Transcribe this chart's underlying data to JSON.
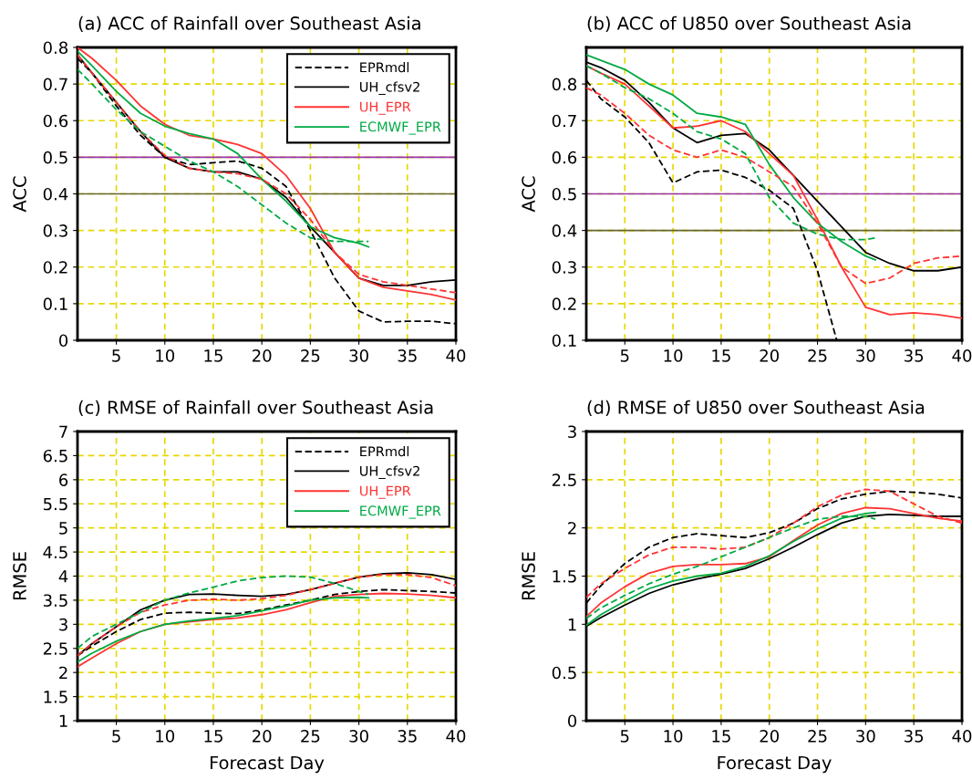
{
  "chart_data": [
    {
      "type": "line",
      "title": "(a) ACC of Rainfall over Southeast Asia",
      "ylabel": "ACC",
      "x": [
        1,
        2.5,
        5,
        7.5,
        10,
        12.5,
        15,
        17.5,
        20,
        22.5,
        25,
        27.5,
        30,
        32.5,
        35,
        37.5,
        40
      ],
      "xlim": [
        1,
        40
      ],
      "xticks": [
        5,
        10,
        15,
        20,
        25,
        30,
        35,
        40
      ],
      "ylim": [
        0,
        0.8
      ],
      "yticks": [
        0,
        0.1,
        0.2,
        0.3,
        0.4,
        0.5,
        0.6,
        0.7,
        0.8
      ],
      "grid": true,
      "legend": "top right",
      "ref_lines": [
        {
          "axis": "y",
          "value": 0.5,
          "color": "#9933aa"
        },
        {
          "axis": "y",
          "value": 0.4,
          "color": "#666633"
        }
      ],
      "series": [
        {
          "name": "EPRmdl",
          "color": "#000000",
          "line_style": "dashed",
          "values": [
            0.77,
            0.73,
            0.64,
            0.56,
            0.5,
            0.48,
            0.485,
            0.49,
            0.47,
            0.42,
            0.3,
            0.17,
            0.08,
            0.05,
            0.052,
            0.052,
            0.045
          ]
        },
        {
          "name": "UH_cfsv2",
          "color": "#000000",
          "line_style": "solid",
          "values": [
            0.78,
            0.73,
            0.65,
            0.57,
            0.5,
            0.47,
            0.46,
            0.46,
            0.44,
            0.39,
            0.31,
            0.24,
            0.17,
            0.15,
            0.15,
            0.16,
            0.165
          ]
        },
        {
          "name": "UH_EPR",
          "color": "#ff3333",
          "line_style": "solid",
          "values": [
            0.8,
            0.77,
            0.71,
            0.64,
            0.59,
            0.56,
            0.55,
            0.535,
            0.51,
            0.45,
            0.36,
            0.24,
            0.17,
            0.145,
            0.135,
            0.125,
            0.11
          ]
        },
        {
          "name": "ECMWF_EPR",
          "color": "#00aa44",
          "line_style": "solid",
          "x": [
            1,
            2.5,
            5,
            7.5,
            10,
            12.5,
            15,
            17.5,
            20,
            22.5,
            25,
            27.5,
            30,
            31
          ],
          "values": [
            0.79,
            0.75,
            0.68,
            0.62,
            0.585,
            0.565,
            0.55,
            0.51,
            0.44,
            0.38,
            0.31,
            0.28,
            0.265,
            0.255
          ]
        },
        {
          "color": "#ff3333",
          "line_style": "dashed",
          "values": [
            0.78,
            0.73,
            0.65,
            0.57,
            0.505,
            0.47,
            0.46,
            0.455,
            0.44,
            0.4,
            0.33,
            0.24,
            0.18,
            0.16,
            0.15,
            0.14,
            0.13
          ]
        },
        {
          "color": "#00aa44",
          "line_style": "dashed",
          "x": [
            1,
            2.5,
            5,
            7.5,
            10,
            12.5,
            15,
            17.5,
            20,
            22.5,
            25,
            27.5,
            30,
            31
          ],
          "values": [
            0.74,
            0.7,
            0.63,
            0.57,
            0.53,
            0.49,
            0.46,
            0.42,
            0.37,
            0.32,
            0.28,
            0.27,
            0.27,
            0.27
          ]
        }
      ]
    },
    {
      "type": "line",
      "title": "(b) ACC of U850 over Southeast Asia",
      "ylabel": "ACC",
      "x": [
        1,
        2.5,
        5,
        7.5,
        10,
        12.5,
        15,
        17.5,
        20,
        22.5,
        25,
        27.5,
        30,
        32.5,
        35,
        37.5,
        40
      ],
      "xlim": [
        1,
        40
      ],
      "xticks": [
        5,
        10,
        15,
        20,
        25,
        30,
        35,
        40
      ],
      "ylim": [
        0.1,
        0.9
      ],
      "yticks": [
        0.1,
        0.2,
        0.3,
        0.4,
        0.5,
        0.6,
        0.7,
        0.8
      ],
      "grid": true,
      "ref_lines": [
        {
          "axis": "y",
          "value": 0.5,
          "color": "#9933aa"
        },
        {
          "axis": "y",
          "value": 0.4,
          "color": "#666633"
        }
      ],
      "series": [
        {
          "color": "#000000",
          "line_style": "dashed",
          "x": [
            1,
            2.5,
            5,
            7.5,
            10,
            12.5,
            15,
            17.5,
            20,
            22.5,
            25,
            27
          ],
          "values": [
            0.81,
            0.76,
            0.71,
            0.64,
            0.53,
            0.56,
            0.565,
            0.545,
            0.51,
            0.46,
            0.29,
            0.1
          ]
        },
        {
          "color": "#000000",
          "line_style": "solid",
          "values": [
            0.86,
            0.845,
            0.81,
            0.75,
            0.68,
            0.64,
            0.66,
            0.665,
            0.62,
            0.55,
            0.48,
            0.41,
            0.34,
            0.31,
            0.29,
            0.29,
            0.3
          ]
        },
        {
          "color": "#ff3333",
          "line_style": "solid",
          "values": [
            0.85,
            0.83,
            0.8,
            0.74,
            0.68,
            0.685,
            0.7,
            0.67,
            0.61,
            0.55,
            0.43,
            0.3,
            0.19,
            0.17,
            0.175,
            0.17,
            0.16
          ]
        },
        {
          "color": "#00aa44",
          "line_style": "solid",
          "x": [
            1,
            2.5,
            5,
            7.5,
            10,
            12.5,
            15,
            17.5,
            20,
            22.5,
            25,
            27.5,
            30,
            31
          ],
          "values": [
            0.88,
            0.865,
            0.84,
            0.8,
            0.77,
            0.72,
            0.71,
            0.69,
            0.58,
            0.49,
            0.42,
            0.37,
            0.33,
            0.32
          ]
        },
        {
          "color": "#ff3333",
          "line_style": "dashed",
          "values": [
            0.79,
            0.77,
            0.72,
            0.66,
            0.62,
            0.6,
            0.62,
            0.6,
            0.56,
            0.52,
            0.42,
            0.3,
            0.255,
            0.27,
            0.31,
            0.325,
            0.33
          ]
        },
        {
          "color": "#00aa44",
          "line_style": "dashed",
          "x": [
            1,
            2.5,
            5,
            7.5,
            10,
            12.5,
            15,
            17.5,
            20,
            22.5,
            25,
            27.5,
            30,
            31
          ],
          "values": [
            0.85,
            0.83,
            0.79,
            0.76,
            0.72,
            0.67,
            0.65,
            0.61,
            0.49,
            0.42,
            0.39,
            0.375,
            0.375,
            0.38
          ]
        }
      ]
    },
    {
      "type": "line",
      "title": "(c) RMSE of Rainfall over Southeast Asia",
      "ylabel": "RMSE",
      "xlabel": "Forecast Day",
      "x": [
        1,
        2.5,
        5,
        7.5,
        10,
        12.5,
        15,
        17.5,
        20,
        22.5,
        25,
        27.5,
        30,
        32.5,
        35,
        37.5,
        40
      ],
      "xlim": [
        1,
        40
      ],
      "xticks": [
        5,
        10,
        15,
        20,
        25,
        30,
        35,
        40
      ],
      "ylim": [
        1,
        7
      ],
      "yticks": [
        1,
        1.5,
        2,
        2.5,
        3,
        3.5,
        4,
        4.5,
        5,
        5.5,
        6,
        6.5,
        7
      ],
      "grid": true,
      "legend": "top right",
      "series": [
        {
          "name": "EPRmdl",
          "color": "#000000",
          "line_style": "dashed",
          "values": [
            2.35,
            2.55,
            2.85,
            3.1,
            3.23,
            3.25,
            3.23,
            3.22,
            3.3,
            3.4,
            3.5,
            3.62,
            3.68,
            3.72,
            3.7,
            3.68,
            3.65
          ]
        },
        {
          "name": "UH_cfsv2",
          "color": "#000000",
          "line_style": "solid",
          "values": [
            2.35,
            2.6,
            2.95,
            3.3,
            3.5,
            3.62,
            3.63,
            3.6,
            3.58,
            3.62,
            3.72,
            3.85,
            3.98,
            4.05,
            4.07,
            4.03,
            3.93
          ]
        },
        {
          "name": "UH_EPR",
          "color": "#ff3333",
          "line_style": "solid",
          "values": [
            2.12,
            2.3,
            2.6,
            2.85,
            3.0,
            3.05,
            3.1,
            3.13,
            3.2,
            3.3,
            3.45,
            3.58,
            3.62,
            3.64,
            3.63,
            3.6,
            3.55
          ]
        },
        {
          "name": "ECMWF_EPR",
          "color": "#00aa44",
          "line_style": "solid",
          "x": [
            1,
            2.5,
            5,
            7.5,
            10,
            12.5,
            15,
            17.5,
            20,
            22.5,
            25,
            27.5,
            30,
            31
          ],
          "values": [
            2.22,
            2.4,
            2.65,
            2.85,
            3.0,
            3.07,
            3.12,
            3.18,
            3.28,
            3.38,
            3.5,
            3.55,
            3.56,
            3.55
          ]
        },
        {
          "color": "#ff3333",
          "line_style": "dashed",
          "values": [
            2.35,
            2.6,
            2.95,
            3.25,
            3.4,
            3.5,
            3.52,
            3.5,
            3.53,
            3.6,
            3.72,
            3.85,
            3.98,
            4.03,
            4.03,
            3.97,
            3.8
          ]
        },
        {
          "color": "#00aa44",
          "line_style": "dashed",
          "x": [
            1,
            2.5,
            5,
            7.5,
            10,
            12.5,
            15,
            17.5,
            20,
            22.5,
            25,
            27.5,
            30,
            31
          ],
          "values": [
            2.5,
            2.75,
            3.0,
            3.25,
            3.5,
            3.65,
            3.77,
            3.9,
            3.97,
            4.0,
            3.98,
            3.85,
            3.68,
            3.62
          ]
        }
      ]
    },
    {
      "type": "line",
      "title": "(d) RMSE of U850 over Southeast Asia",
      "ylabel": "RMSE",
      "xlabel": "Forecast Day",
      "x": [
        1,
        2.5,
        5,
        7.5,
        10,
        12.5,
        15,
        17.5,
        20,
        22.5,
        25,
        27.5,
        30,
        32.5,
        35,
        37.5,
        40
      ],
      "xlim": [
        1,
        40
      ],
      "xticks": [
        5,
        10,
        15,
        20,
        25,
        30,
        35,
        40
      ],
      "ylim": [
        0,
        3
      ],
      "yticks": [
        0,
        0.5,
        1,
        1.5,
        2,
        2.5,
        3
      ],
      "grid": true,
      "series": [
        {
          "color": "#000000",
          "line_style": "dashed",
          "values": [
            1.22,
            1.4,
            1.63,
            1.8,
            1.9,
            1.94,
            1.92,
            1.9,
            1.95,
            2.05,
            2.2,
            2.3,
            2.35,
            2.38,
            2.37,
            2.35,
            2.31
          ]
        },
        {
          "color": "#000000",
          "line_style": "solid",
          "values": [
            0.98,
            1.07,
            1.2,
            1.32,
            1.41,
            1.47,
            1.52,
            1.58,
            1.68,
            1.8,
            1.93,
            2.05,
            2.12,
            2.14,
            2.13,
            2.12,
            2.12
          ]
        },
        {
          "color": "#ff3333",
          "line_style": "solid",
          "values": [
            1.08,
            1.22,
            1.39,
            1.53,
            1.6,
            1.62,
            1.62,
            1.63,
            1.7,
            1.87,
            2.03,
            2.15,
            2.21,
            2.2,
            2.15,
            2.1,
            2.07
          ]
        },
        {
          "color": "#00aa44",
          "line_style": "solid",
          "x": [
            1,
            2.5,
            5,
            7.5,
            10,
            12.5,
            15,
            17.5,
            20,
            22.5,
            25,
            27.5,
            30,
            31
          ],
          "values": [
            0.99,
            1.1,
            1.24,
            1.37,
            1.45,
            1.5,
            1.53,
            1.6,
            1.71,
            1.86,
            1.99,
            2.1,
            2.15,
            2.16
          ]
        },
        {
          "color": "#ff3333",
          "line_style": "dashed",
          "values": [
            1.28,
            1.42,
            1.58,
            1.72,
            1.8,
            1.8,
            1.78,
            1.8,
            1.9,
            2.05,
            2.22,
            2.34,
            2.4,
            2.38,
            2.25,
            2.12,
            2.05
          ]
        },
        {
          "color": "#00aa44",
          "line_style": "dashed",
          "x": [
            1,
            2.5,
            5,
            7.5,
            10,
            12.5,
            15,
            17.5,
            20,
            22.5,
            25,
            27.5,
            30,
            31
          ],
          "values": [
            1.06,
            1.17,
            1.3,
            1.42,
            1.52,
            1.6,
            1.7,
            1.8,
            1.9,
            2.0,
            2.09,
            2.12,
            2.12,
            2.09
          ]
        }
      ]
    }
  ]
}
